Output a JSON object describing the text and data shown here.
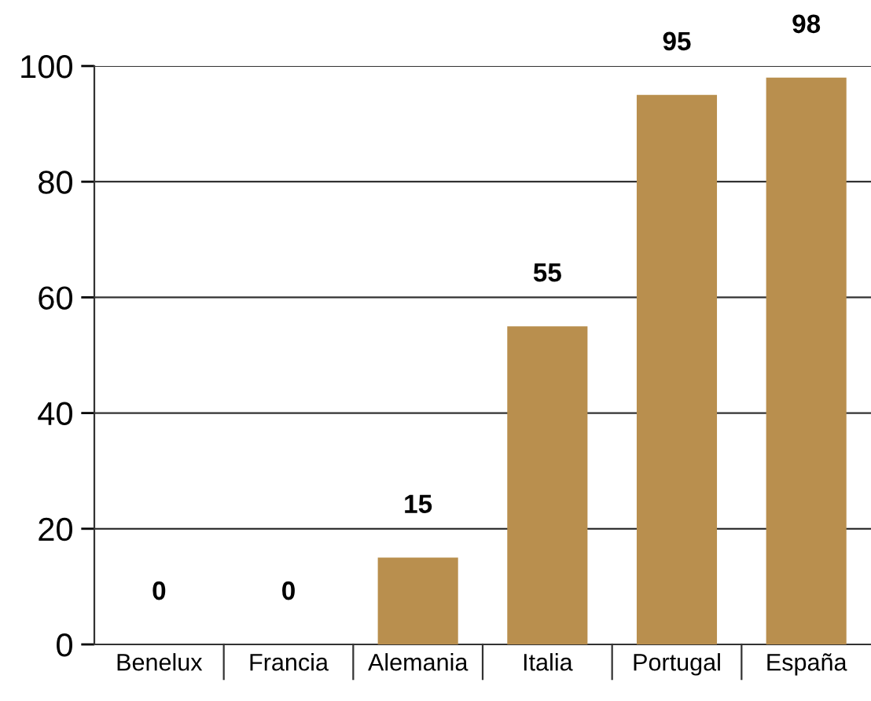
{
  "chart_data": {
    "type": "bar",
    "categories": [
      "Benelux",
      "Francia",
      "Alemania",
      "Italia",
      "Portugal",
      "España"
    ],
    "values": [
      0,
      0,
      15,
      55,
      95,
      98
    ],
    "color": "#b98f4e",
    "ylim": [
      0,
      100
    ],
    "yticks": [
      0,
      20,
      40,
      60,
      80,
      100
    ],
    "grid": "y",
    "data_labels": true
  }
}
